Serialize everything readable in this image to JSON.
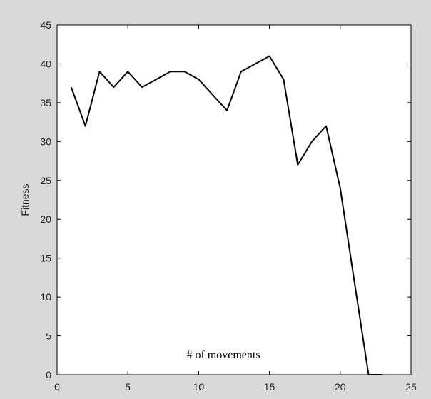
{
  "chart_data": {
    "type": "line",
    "title": "",
    "xlabel": "# of movements",
    "ylabel": "Fitness",
    "xlim": [
      0,
      25
    ],
    "ylim": [
      0,
      45
    ],
    "xticks": [
      0,
      5,
      10,
      15,
      20,
      25
    ],
    "yticks": [
      0,
      5,
      10,
      15,
      20,
      25,
      30,
      35,
      40,
      45
    ],
    "grid": false,
    "legend": "none",
    "series": [
      {
        "color": "#000000",
        "x": [
          1,
          2,
          3,
          4,
          5,
          6,
          7,
          8,
          9,
          10,
          11,
          12,
          13,
          14,
          15,
          16,
          17,
          18,
          19,
          20,
          21,
          22,
          23
        ],
        "y": [
          37,
          32,
          39,
          37,
          39,
          37,
          38,
          39,
          39,
          38,
          36,
          34,
          39,
          40,
          41,
          38,
          27,
          30,
          32,
          24,
          12,
          0,
          0
        ]
      }
    ]
  }
}
